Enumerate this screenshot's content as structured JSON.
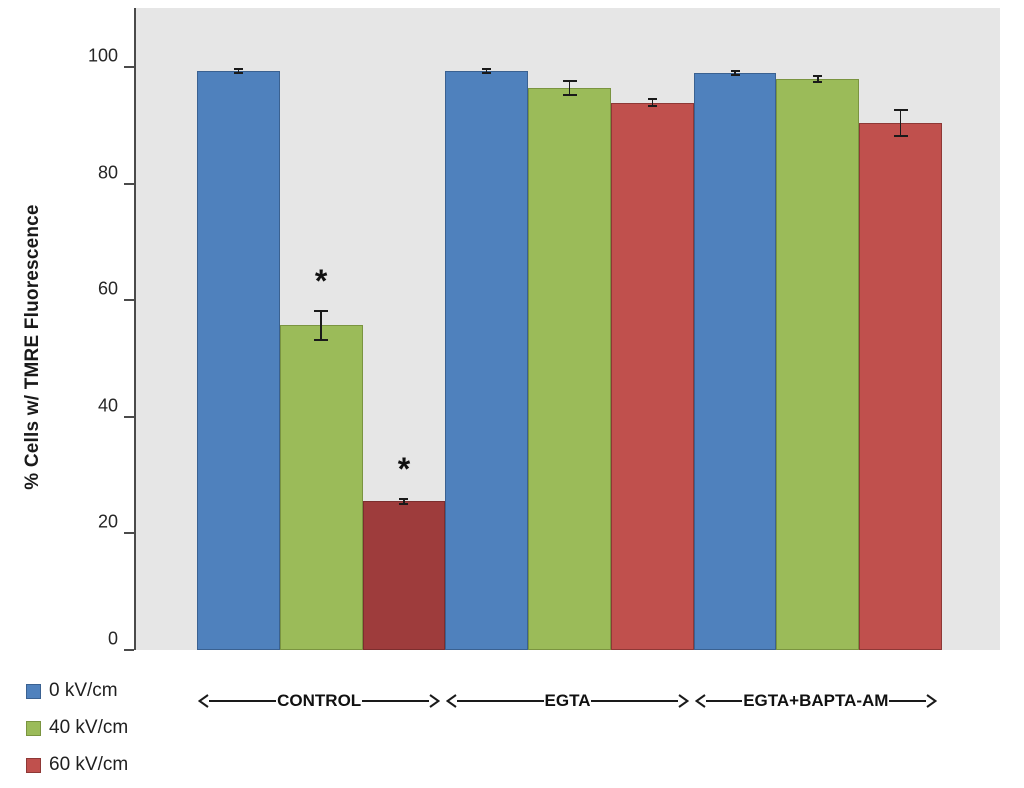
{
  "figure": {
    "background": "#ffffff",
    "plot_background": "#E6E6E6",
    "axis_color": "#4a4a4a",
    "text_color": "#1a1a1a"
  },
  "chart_data": {
    "type": "bar",
    "title": "",
    "xlabel": "",
    "ylabel": "% Cells w/ TMRE Fluorescence",
    "ylim": [
      0,
      110
    ],
    "yticks": [
      0,
      20,
      40,
      60,
      80,
      100
    ],
    "grid": false,
    "legend_position": "bottom-left",
    "categories": [
      "CONTROL",
      "EGTA",
      "EGTA+BAPTA-AM"
    ],
    "series": [
      {
        "name": "0 kV/cm",
        "color": "#4F81BD",
        "border": "#3A6191",
        "values": [
          99.3,
          99.3,
          99.0
        ],
        "errors": [
          0.4,
          0.3,
          0.3
        ]
      },
      {
        "name": "40 kV/cm",
        "color": "#9BBB59",
        "border": "#7A9440",
        "values": [
          55.7,
          96.4,
          97.9
        ],
        "errors": [
          2.5,
          1.2,
          0.5
        ]
      },
      {
        "name": "60 kV/cm",
        "color": "#C0504D",
        "border": "#8E3836",
        "values": [
          25.5,
          93.9,
          90.4
        ],
        "errors": [
          0.4,
          0.6,
          2.3
        ]
      }
    ],
    "bar_fill_overrides": [
      {
        "series": 2,
        "category": 0,
        "color": "#9E3C3C",
        "border": "#7C2E2E"
      }
    ],
    "significance": [
      {
        "series": 1,
        "category": 0,
        "symbol": "*"
      },
      {
        "series": 2,
        "category": 0,
        "symbol": "*"
      }
    ]
  }
}
